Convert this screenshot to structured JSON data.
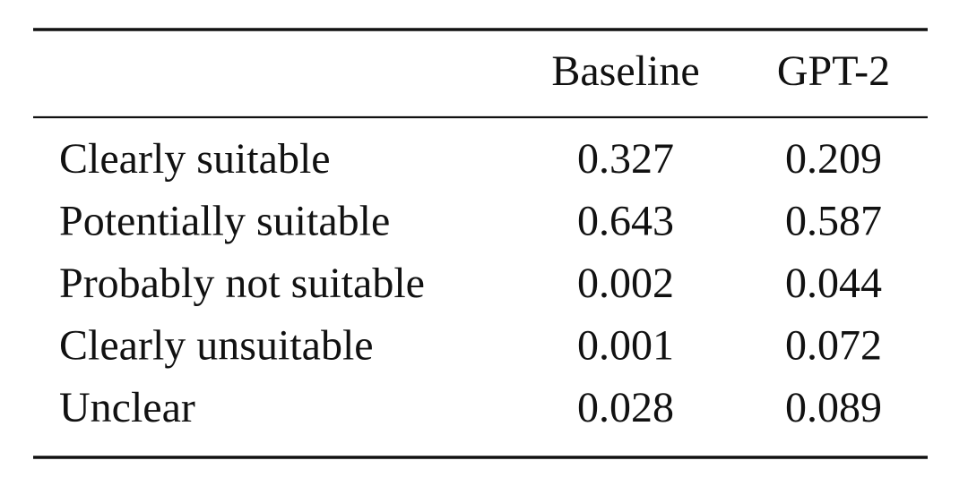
{
  "table": {
    "header": [
      "Baseline",
      "GPT-2"
    ],
    "rows": [
      [
        "Clearly suitable",
        "0.327",
        "0.209"
      ],
      [
        "Potentially suitable",
        "0.643",
        "0.587"
      ],
      [
        "Probably not suitable",
        "0.002",
        "0.044"
      ],
      [
        "Clearly unsuitable",
        "0.001",
        "0.072"
      ],
      [
        "Unclear",
        "0.028",
        "0.089"
      ]
    ]
  }
}
